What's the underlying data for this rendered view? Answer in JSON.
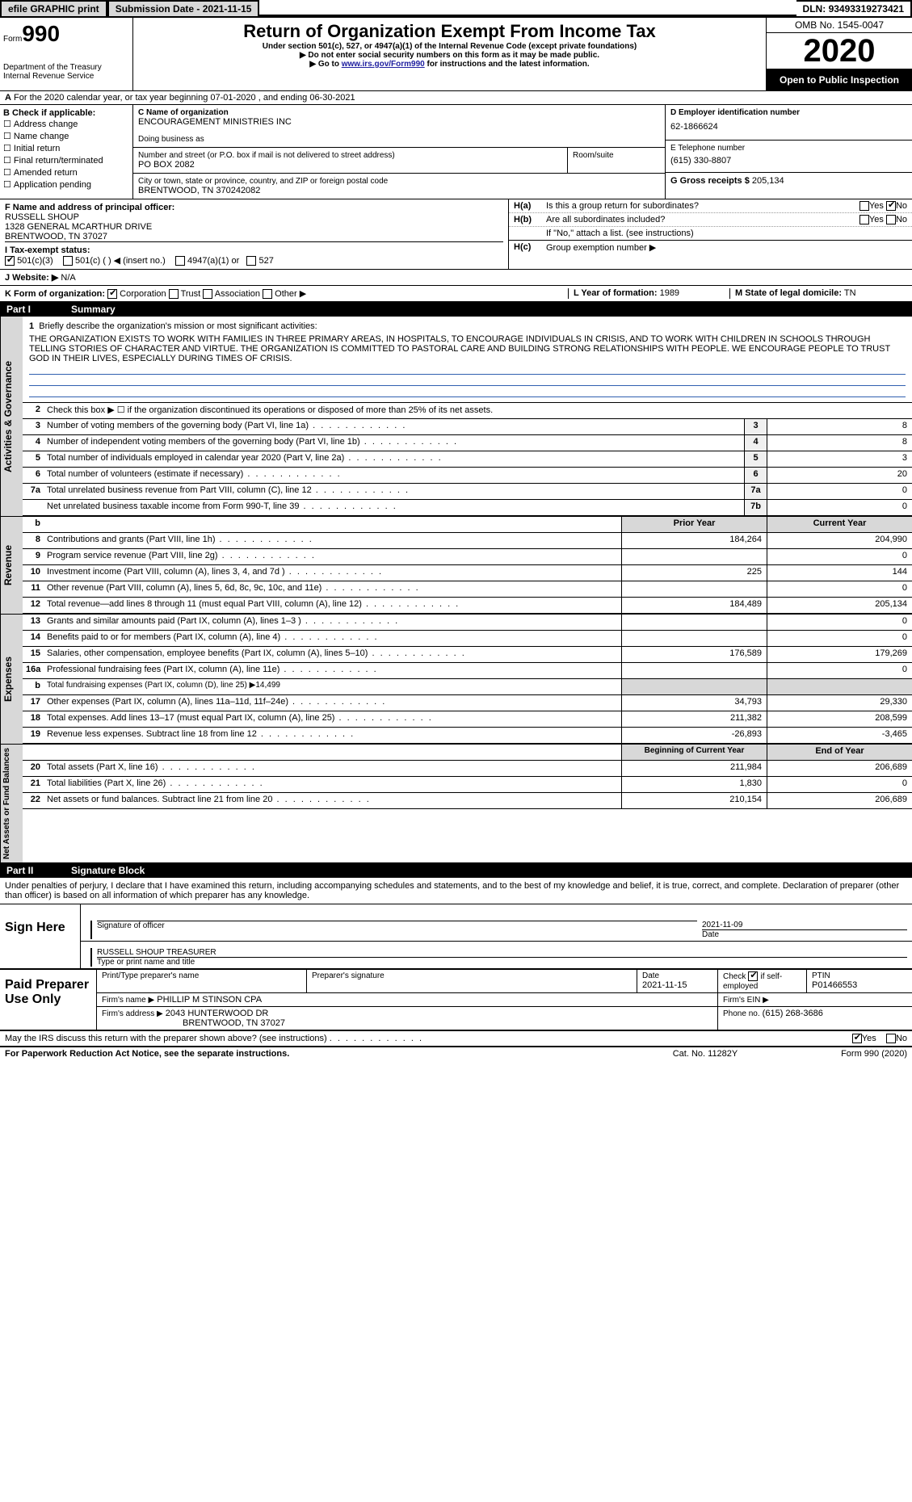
{
  "topbar": {
    "efile": "efile GRAPHIC print",
    "submission_label": "Submission Date -",
    "submission_date": "2021-11-15",
    "dln_label": "DLN:",
    "dln": "93493319273421"
  },
  "header": {
    "form_prefix": "Form",
    "form_number": "990",
    "dept1": "Department of the Treasury",
    "dept2": "Internal Revenue Service",
    "title": "Return of Organization Exempt From Income Tax",
    "subtitle": "Under section 501(c), 527, or 4947(a)(1) of the Internal Revenue Code (except private foundations)",
    "note1": "Do not enter social security numbers on this form as it may be made public.",
    "note2_prefix": "Go to ",
    "note2_link": "www.irs.gov/Form990",
    "note2_suffix": " for instructions and the latest information.",
    "omb": "OMB No. 1545-0047",
    "year": "2020",
    "open_public": "Open to Public Inspection"
  },
  "rowA": {
    "prefix": "A",
    "text": "For the 2020 calendar year, or tax year beginning 07-01-2020   , and ending 06-30-2021"
  },
  "colB": {
    "heading": "B Check if applicable:",
    "items": [
      "Address change",
      "Name change",
      "Initial return",
      "Final return/terminated",
      "Amended return",
      "Application pending"
    ]
  },
  "boxC": {
    "label": "C Name of organization",
    "org_name": "ENCOURAGEMENT MINISTRIES INC",
    "dba_label": "Doing business as",
    "street_label": "Number and street (or P.O. box if mail is not delivered to street address)",
    "room_label": "Room/suite",
    "street": "PO BOX 2082",
    "city_label": "City or town, state or province, country, and ZIP or foreign postal code",
    "city": "BRENTWOOD, TN  370242082"
  },
  "boxD": {
    "label": "D Employer identification number",
    "value": "62-1866624"
  },
  "boxE": {
    "label": "E Telephone number",
    "value": "(615) 330-8807"
  },
  "boxG": {
    "label": "G Gross receipts $",
    "value": "205,134"
  },
  "boxF": {
    "label": "F  Name and address of principal officer:",
    "name": "RUSSELL SHOUP",
    "addr1": "1328 GENERAL MCARTHUR DRIVE",
    "addr2": "BRENTWOOD, TN  37027"
  },
  "boxH": {
    "a_label": "H(a)",
    "a_text": "Is this a group return for subordinates?",
    "b_label": "H(b)",
    "b_text": "Are all subordinates included?",
    "note": "If \"No,\" attach a list. (see instructions)",
    "c_label": "H(c)",
    "c_text": "Group exemption number ▶",
    "yes": "Yes",
    "no": "No"
  },
  "boxI": {
    "label": "I     Tax-exempt status:",
    "opt1": "501(c)(3)",
    "opt2": "501(c) (   ) ◀ (insert no.)",
    "opt3": "4947(a)(1) or",
    "opt4": "527"
  },
  "boxJ": {
    "label": "J    Website: ▶",
    "value": "N/A"
  },
  "boxK": {
    "label": "K Form of organization:",
    "opts": [
      "Corporation",
      "Trust",
      "Association",
      "Other ▶"
    ],
    "checked_index": 0
  },
  "boxL": {
    "label": "L Year of formation:",
    "value": "1989"
  },
  "boxM": {
    "label": "M State of legal domicile:",
    "value": "TN"
  },
  "part1": {
    "label": "Part I",
    "title": "Summary"
  },
  "governance": {
    "section_label": "Activities & Governance",
    "q1_num": "1",
    "q1_text": "Briefly describe the organization's mission or most significant activities:",
    "mission": "THE ORGANIZATION EXISTS TO WORK WITH FAMILIES IN THREE PRIMARY AREAS, IN HOSPITALS, TO ENCOURAGE INDIVIDUALS IN CRISIS, AND TO WORK WITH CHILDREN IN SCHOOLS THROUGH TELLING STORIES OF CHARACTER AND VIRTUE. THE ORGANIZATION IS COMMITTED TO PASTORAL CARE AND BUILDING STRONG RELATIONSHIPS WITH PEOPLE. WE ENCOURAGE PEOPLE TO TRUST GOD IN THEIR LIVES, ESPECIALLY DURING TIMES OF CRISIS.",
    "q2_num": "2",
    "q2_text": "Check this box ▶ ☐  if the organization discontinued its operations or disposed of more than 25% of its net assets.",
    "rows": [
      {
        "num": "3",
        "text": "Number of voting members of the governing body (Part VI, line 1a)",
        "box": "3",
        "val": "8"
      },
      {
        "num": "4",
        "text": "Number of independent voting members of the governing body (Part VI, line 1b)",
        "box": "4",
        "val": "8"
      },
      {
        "num": "5",
        "text": "Total number of individuals employed in calendar year 2020 (Part V, line 2a)",
        "box": "5",
        "val": "3"
      },
      {
        "num": "6",
        "text": "Total number of volunteers (estimate if necessary)",
        "box": "6",
        "val": "20"
      },
      {
        "num": "7a",
        "text": "Total unrelated business revenue from Part VIII, column (C), line 12",
        "box": "7a",
        "val": "0"
      },
      {
        "num": "",
        "text": "Net unrelated business taxable income from Form 990-T, line 39",
        "box": "7b",
        "val": "0"
      }
    ]
  },
  "revenue": {
    "section_label": "Revenue",
    "header_prior": "Prior Year",
    "header_current": "Current Year",
    "b_label": "b",
    "rows": [
      {
        "num": "8",
        "text": "Contributions and grants (Part VIII, line 1h)",
        "prior": "184,264",
        "current": "204,990"
      },
      {
        "num": "9",
        "text": "Program service revenue (Part VIII, line 2g)",
        "prior": "",
        "current": "0"
      },
      {
        "num": "10",
        "text": "Investment income (Part VIII, column (A), lines 3, 4, and 7d )",
        "prior": "225",
        "current": "144"
      },
      {
        "num": "11",
        "text": "Other revenue (Part VIII, column (A), lines 5, 6d, 8c, 9c, 10c, and 11e)",
        "prior": "",
        "current": "0"
      },
      {
        "num": "12",
        "text": "Total revenue—add lines 8 through 11 (must equal Part VIII, column (A), line 12)",
        "prior": "184,489",
        "current": "205,134"
      }
    ]
  },
  "expenses": {
    "section_label": "Expenses",
    "rows": [
      {
        "num": "13",
        "text": "Grants and similar amounts paid (Part IX, column (A), lines 1–3 )",
        "prior": "",
        "current": "0"
      },
      {
        "num": "14",
        "text": "Benefits paid to or for members (Part IX, column (A), line 4)",
        "prior": "",
        "current": "0"
      },
      {
        "num": "15",
        "text": "Salaries, other compensation, employee benefits (Part IX, column (A), lines 5–10)",
        "prior": "176,589",
        "current": "179,269"
      },
      {
        "num": "16a",
        "text": "Professional fundraising fees (Part IX, column (A), line 11e)",
        "prior": "",
        "current": "0"
      }
    ],
    "row_b": {
      "num": "b",
      "text": "Total fundraising expenses (Part IX, column (D), line 25) ▶14,499"
    },
    "rows2": [
      {
        "num": "17",
        "text": "Other expenses (Part IX, column (A), lines 11a–11d, 11f–24e)",
        "prior": "34,793",
        "current": "29,330"
      },
      {
        "num": "18",
        "text": "Total expenses. Add lines 13–17 (must equal Part IX, column (A), line 25)",
        "prior": "211,382",
        "current": "208,599"
      },
      {
        "num": "19",
        "text": "Revenue less expenses. Subtract line 18 from line 12",
        "prior": "-26,893",
        "current": "-3,465"
      }
    ]
  },
  "netassets": {
    "section_label": "Net Assets or Fund Balances",
    "header_begin": "Beginning of Current Year",
    "header_end": "End of Year",
    "rows": [
      {
        "num": "20",
        "text": "Total assets (Part X, line 16)",
        "prior": "211,984",
        "current": "206,689"
      },
      {
        "num": "21",
        "text": "Total liabilities (Part X, line 26)",
        "prior": "1,830",
        "current": "0"
      },
      {
        "num": "22",
        "text": "Net assets or fund balances. Subtract line 21 from line 20",
        "prior": "210,154",
        "current": "206,689"
      }
    ]
  },
  "part2": {
    "label": "Part II",
    "title": "Signature Block"
  },
  "penalty": "Under penalties of perjury, I declare that I have examined this return, including accompanying schedules and statements, and to the best of my knowledge and belief, it is true, correct, and complete. Declaration of preparer (other than officer) is based on all information of which preparer has any knowledge.",
  "sign": {
    "label": "Sign Here",
    "sig_label": "Signature of officer",
    "date_label": "Date",
    "date": "2021-11-09",
    "name": "RUSSELL SHOUP TREASURER",
    "name_label": "Type or print name and title"
  },
  "paid": {
    "label": "Paid Preparer Use Only",
    "col1": "Print/Type preparer's name",
    "col2": "Preparer's signature",
    "col3_label": "Date",
    "col3": "2021-11-15",
    "col4_label": "Check",
    "col4_text": "if self-employed",
    "col5_label": "PTIN",
    "col5": "P01466553",
    "firm_name_label": "Firm's name    ▶",
    "firm_name": "PHILLIP M STINSON CPA",
    "firm_ein_label": "Firm's EIN ▶",
    "firm_addr_label": "Firm's address ▶",
    "firm_addr1": "2043 HUNTERWOOD DR",
    "firm_addr2": "BRENTWOOD, TN  37027",
    "phone_label": "Phone no.",
    "phone": "(615) 268-3686"
  },
  "discuss": {
    "text": "May the IRS discuss this return with the preparer shown above? (see instructions)",
    "yes": "Yes",
    "no": "No"
  },
  "footer": {
    "left": "For Paperwork Reduction Act Notice, see the separate instructions.",
    "mid": "Cat. No. 11282Y",
    "right": "Form 990 (2020)"
  },
  "colors": {
    "link": "#2020a0",
    "gray_bg": "#d8d8d8"
  }
}
